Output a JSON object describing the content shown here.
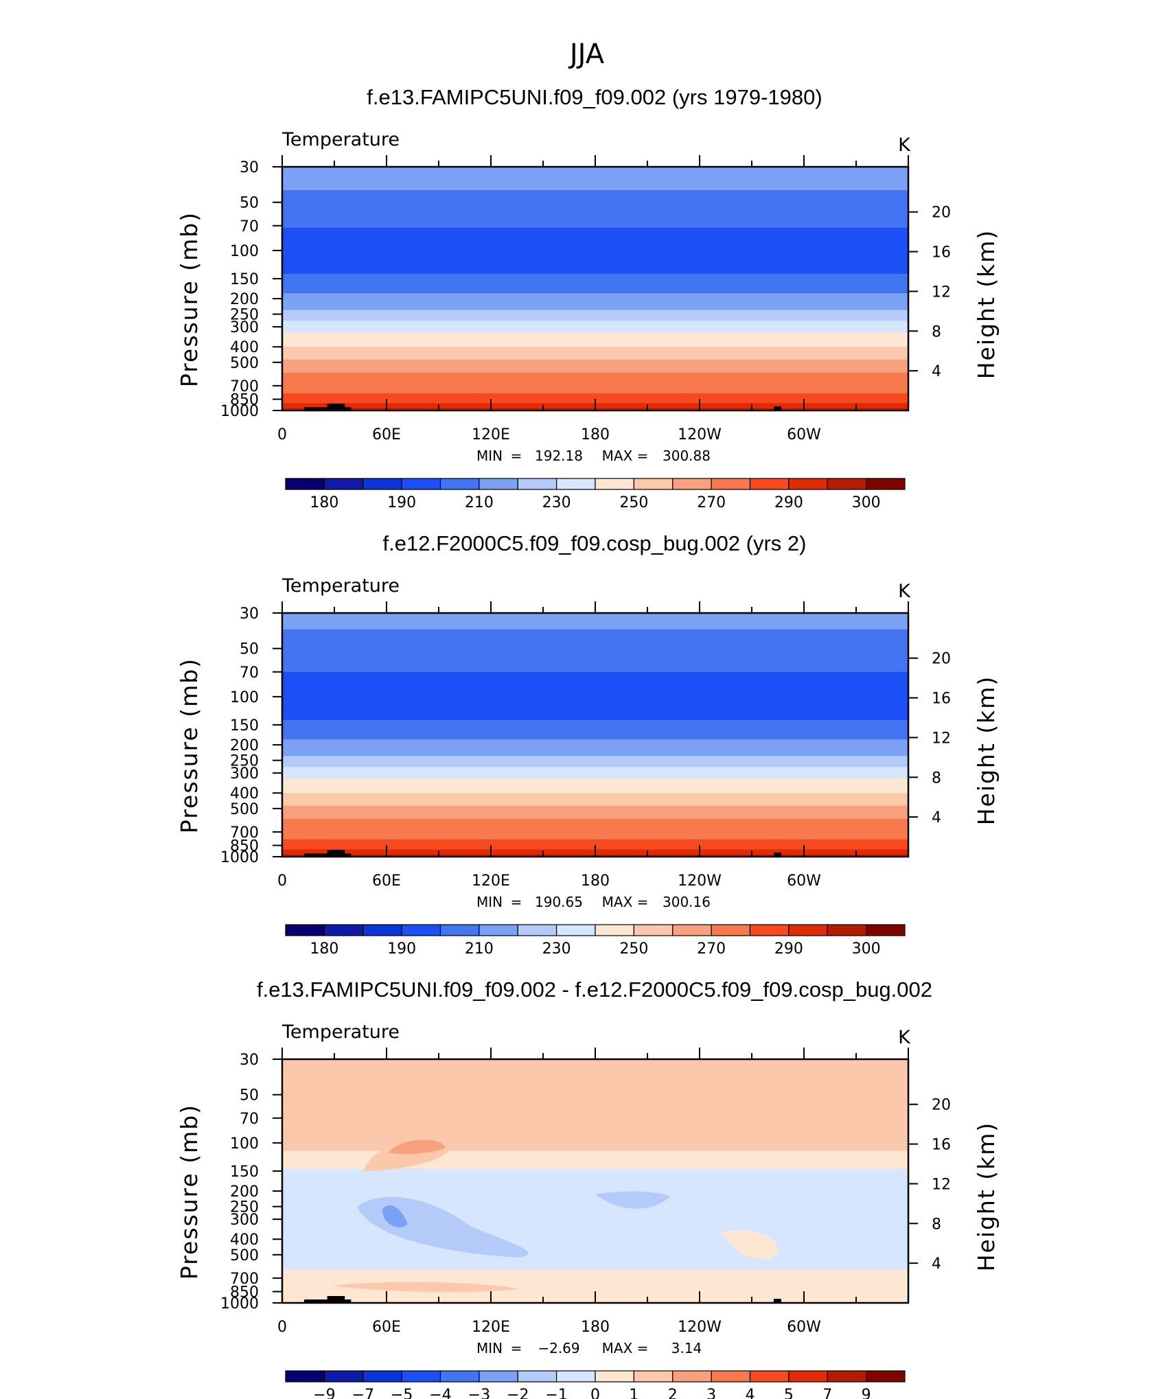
{
  "main_title": "JJA",
  "chart_data": [
    {
      "type": "contour",
      "title": "f.e13.FAMIPC5UNI.f09_f09.002 (yrs 1979-1980)",
      "variable": "Temperature",
      "units": "K",
      "ylabel": "Pressure (mb)",
      "y2label": "Height (km)",
      "xticks": [
        "0",
        "60E",
        "120E",
        "180",
        "120W",
        "60W"
      ],
      "yticks": [
        30,
        50,
        70,
        100,
        150,
        200,
        250,
        300,
        400,
        500,
        700,
        850,
        1000
      ],
      "y2ticks": [
        20,
        16,
        12,
        8,
        4
      ],
      "stats": {
        "min_label": "MIN",
        "min": "192.18",
        "max_label": "MAX",
        "max": "300.88"
      },
      "colorbar_labels": [
        "180",
        "190",
        "210",
        "230",
        "250",
        "270",
        "290",
        "300"
      ],
      "colorbar_colors": [
        "#08006e",
        "#0f1ba6",
        "#0a35d8",
        "#1d4ff6",
        "#4375f2",
        "#7ba1f4",
        "#b4cbfa",
        "#d6e6fe",
        "#fde6d2",
        "#fcc8ac",
        "#f9a07e",
        "#f8794d",
        "#f74b1f",
        "#e02b07",
        "#b31c03",
        "#7d0500"
      ],
      "bands": [
        {
          "p": 30,
          "c": "#7ba1f4"
        },
        {
          "p": 42,
          "c": "#4375f2"
        },
        {
          "p": 72,
          "c": "#1d4ff6"
        },
        {
          "p": 140,
          "c": "#4375f2"
        },
        {
          "p": 185,
          "c": "#7ba1f4"
        },
        {
          "p": 235,
          "c": "#b4cbfa"
        },
        {
          "p": 275,
          "c": "#d6e6fe"
        },
        {
          "p": 325,
          "c": "#fde6d2"
        },
        {
          "p": 400,
          "c": "#fcc8ac"
        },
        {
          "p": 480,
          "c": "#f9a07e"
        },
        {
          "p": 580,
          "c": "#f8794d"
        },
        {
          "p": 780,
          "c": "#f74b1f"
        },
        {
          "p": 900,
          "c": "#e02b07"
        },
        {
          "p": 970,
          "c": "#b31c03"
        }
      ]
    },
    {
      "type": "contour",
      "title": "f.e12.F2000C5.f09_f09.cosp_bug.002 (yrs 2)",
      "variable": "Temperature",
      "units": "K",
      "ylabel": "Pressure (mb)",
      "y2label": "Height (km)",
      "xticks": [
        "0",
        "60E",
        "120E",
        "180",
        "120W",
        "60W"
      ],
      "yticks": [
        30,
        50,
        70,
        100,
        150,
        200,
        250,
        300,
        400,
        500,
        700,
        850,
        1000
      ],
      "y2ticks": [
        20,
        16,
        12,
        8,
        4
      ],
      "stats": {
        "min_label": "MIN",
        "min": "190.65",
        "max_label": "MAX",
        "max": "300.16"
      },
      "colorbar_labels": [
        "180",
        "190",
        "210",
        "230",
        "250",
        "270",
        "290",
        "300"
      ],
      "colorbar_colors": [
        "#08006e",
        "#0f1ba6",
        "#0a35d8",
        "#1d4ff6",
        "#4375f2",
        "#7ba1f4",
        "#b4cbfa",
        "#d6e6fe",
        "#fde6d2",
        "#fcc8ac",
        "#f9a07e",
        "#f8794d",
        "#f74b1f",
        "#e02b07",
        "#b31c03",
        "#7d0500"
      ],
      "bands": [
        {
          "p": 30,
          "c": "#7ba1f4"
        },
        {
          "p": 38,
          "c": "#4375f2"
        },
        {
          "p": 70,
          "c": "#1d4ff6"
        },
        {
          "p": 140,
          "c": "#4375f2"
        },
        {
          "p": 185,
          "c": "#7ba1f4"
        },
        {
          "p": 235,
          "c": "#b4cbfa"
        },
        {
          "p": 275,
          "c": "#d6e6fe"
        },
        {
          "p": 325,
          "c": "#fde6d2"
        },
        {
          "p": 400,
          "c": "#fcc8ac"
        },
        {
          "p": 480,
          "c": "#f9a07e"
        },
        {
          "p": 580,
          "c": "#f8794d"
        },
        {
          "p": 780,
          "c": "#f74b1f"
        },
        {
          "p": 900,
          "c": "#e02b07"
        },
        {
          "p": 970,
          "c": "#b31c03"
        }
      ]
    },
    {
      "type": "contour",
      "title": "f.e13.FAMIPC5UNI.f09_f09.002 - f.e12.F2000C5.f09_f09.cosp_bug.002",
      "variable": "Temperature",
      "units": "K",
      "ylabel": "Pressure (mb)",
      "y2label": "Height (km)",
      "xticks": [
        "0",
        "60E",
        "120E",
        "180",
        "120W",
        "60W"
      ],
      "yticks": [
        30,
        50,
        70,
        100,
        150,
        200,
        250,
        300,
        400,
        500,
        700,
        850,
        1000
      ],
      "y2ticks": [
        20,
        16,
        12,
        8,
        4
      ],
      "stats": {
        "min_label": "MIN",
        "min": "−2.69",
        "max_label": "MAX",
        "max": "3.14"
      },
      "colorbar_labels": [
        "−9",
        "−7",
        "−5",
        "−4",
        "−3",
        "−2",
        "−1",
        "0",
        "1",
        "2",
        "3",
        "4",
        "5",
        "7",
        "9"
      ],
      "colorbar_colors": [
        "#08006e",
        "#0f1ba6",
        "#0a35d8",
        "#1d4ff6",
        "#4375f2",
        "#7ba1f4",
        "#b4cbfa",
        "#d6e6fe",
        "#fde6d2",
        "#fcc8ac",
        "#f9a07e",
        "#f8794d",
        "#f74b1f",
        "#e02b07",
        "#b31c03",
        "#7d0500"
      ],
      "bands": [
        {
          "p": 30,
          "c": "#fcc8ac"
        },
        {
          "p": 112,
          "c": "#fde6d2"
        },
        {
          "p": 145,
          "c": "#d6e6fe"
        },
        {
          "p": 620,
          "c": "#fde6d2"
        }
      ]
    }
  ]
}
